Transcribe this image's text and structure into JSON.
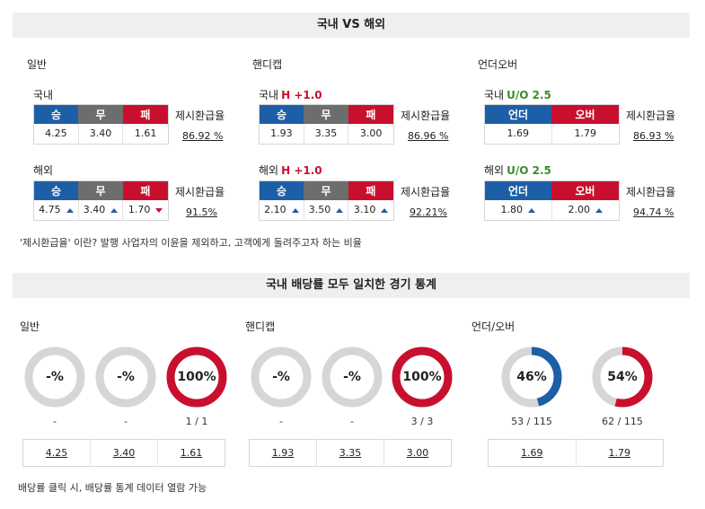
{
  "header_top": "국내 VS 해외",
  "header_bottom": "국내 배당률 모두 일치한 경기 통계",
  "sections": {
    "general": {
      "title": "일반",
      "domestic": {
        "label": "국내",
        "heads": [
          "승",
          "무",
          "패"
        ],
        "values": [
          "4.25",
          "3.40",
          "1.61"
        ],
        "rate_label": "제시환급율",
        "rate": "86.92 %"
      },
      "overseas": {
        "label": "해외",
        "heads": [
          "승",
          "무",
          "패"
        ],
        "values": [
          "4.75",
          "3.40",
          "1.70"
        ],
        "rate_label": "제시환급율",
        "rate": "91.5%"
      }
    },
    "handicap": {
      "title": "핸디캡",
      "domestic": {
        "label": "국내",
        "tag": "H +1.0",
        "heads": [
          "승",
          "무",
          "패"
        ],
        "values": [
          "1.93",
          "3.35",
          "3.00"
        ],
        "rate_label": "제시환급율",
        "rate": "86.96 %"
      },
      "overseas": {
        "label": "해외",
        "tag": "H +1.0",
        "heads": [
          "승",
          "무",
          "패"
        ],
        "values": [
          "2.10",
          "3.50",
          "3.10"
        ],
        "rate_label": "제시환급율",
        "rate": "92.21%"
      }
    },
    "underover": {
      "title": "언더오버",
      "domestic": {
        "label": "국내",
        "tag": "U/O 2.5",
        "heads": [
          "언더",
          "오버"
        ],
        "values": [
          "1.69",
          "1.79"
        ],
        "rate_label": "제시환급율",
        "rate": "86.93 %"
      },
      "overseas": {
        "label": "해외",
        "tag": "U/O 2.5",
        "heads": [
          "언더",
          "오버"
        ],
        "values": [
          "1.80",
          "2.00"
        ],
        "rate_label": "제시환급율",
        "rate": "94.74 %"
      }
    }
  },
  "note_top": "'제시환급율' 이란? 발행 사업자의 이윤을 제외하고, 고객에게 돌려주고자 하는 비율",
  "stats": {
    "general": {
      "title": "일반",
      "donuts": [
        {
          "label": "-%",
          "pct": 0,
          "count": "-",
          "color": "#d0d0d0"
        },
        {
          "label": "-%",
          "pct": 0,
          "count": "-",
          "color": "#d0d0d0"
        },
        {
          "label": "100%",
          "pct": 100,
          "count": "1 / 1",
          "color": "#c8102e"
        }
      ],
      "odds": [
        "4.25",
        "3.40",
        "1.61"
      ]
    },
    "handicap": {
      "title": "핸디캡",
      "donuts": [
        {
          "label": "-%",
          "pct": 0,
          "count": "-",
          "color": "#d0d0d0"
        },
        {
          "label": "-%",
          "pct": 0,
          "count": "-",
          "color": "#d0d0d0"
        },
        {
          "label": "100%",
          "pct": 100,
          "count": "3 / 3",
          "color": "#c8102e"
        }
      ],
      "odds": [
        "1.93",
        "3.35",
        "3.00"
      ]
    },
    "underover": {
      "title": "언더/오버",
      "donuts": [
        {
          "label": "46%",
          "pct": 46,
          "count": "53 / 115",
          "color": "#1d5fa6"
        },
        {
          "label": "54%",
          "pct": 54,
          "count": "62 / 115",
          "color": "#c8102e"
        }
      ],
      "odds": [
        "1.69",
        "1.79"
      ]
    }
  },
  "note_bottom": "배당률 클릭 시, 배당률 통계 데이터 열람 가능",
  "colors": {
    "blue": "#1d5fa6",
    "gray": "#6d6d6d",
    "red": "#c8102e",
    "ring_bg": "#d6d6d6"
  }
}
